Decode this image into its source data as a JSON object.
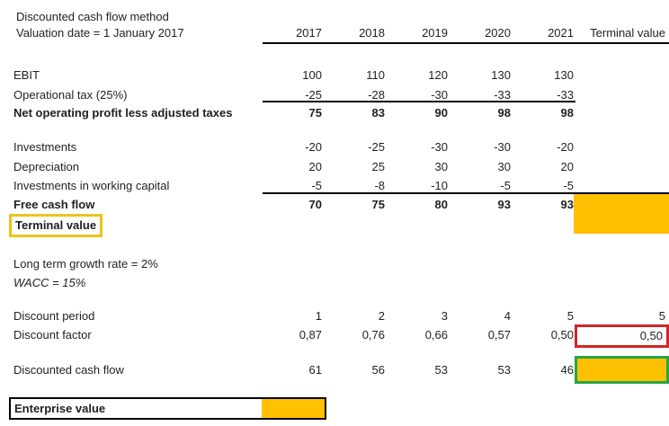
{
  "title": "Discounted cash flow method",
  "header": {
    "label": "Valuation date = 1 January 2017",
    "cols": [
      "2017",
      "2018",
      "2019",
      "2020",
      "2021",
      "Terminal value"
    ]
  },
  "pnl": {
    "ebit": {
      "label": "EBIT",
      "v": [
        "100",
        "110",
        "120",
        "130",
        "130"
      ]
    },
    "optax": {
      "label": "Operational tax (25%)",
      "v": [
        "-25",
        "-28",
        "-30",
        "-33",
        "-33"
      ]
    },
    "noplat": {
      "label": "Net operating profit less adjusted taxes",
      "v": [
        "75",
        "83",
        "90",
        "98",
        "98"
      ]
    },
    "investments": {
      "label": "Investments",
      "v": [
        "-20",
        "-25",
        "-30",
        "-30",
        "-20"
      ]
    },
    "depreciation": {
      "label": "Depreciation",
      "v": [
        "20",
        "25",
        "30",
        "30",
        "20"
      ]
    },
    "wc": {
      "label": "Investments in working capital",
      "v": [
        "-5",
        "-8",
        "-10",
        "-5",
        "-5"
      ]
    },
    "fcf": {
      "label": "Free cash flow",
      "v": [
        "70",
        "75",
        "80",
        "93",
        "93"
      ]
    },
    "terminal": {
      "label": "Terminal value"
    }
  },
  "assumptions": {
    "growth": "Long term growth rate = 2%",
    "wacc": "WACC = 15%"
  },
  "discounting": {
    "period": {
      "label": "Discount period",
      "v": [
        "1",
        "2",
        "3",
        "4",
        "5"
      ],
      "terminal": "5"
    },
    "factor": {
      "label": "Discount factor",
      "v": [
        "0,87",
        "0,76",
        "0,66",
        "0,57",
        "0,50"
      ],
      "terminal": "0,50"
    },
    "dcf": {
      "label": "Discounted cash flow",
      "v": [
        "61",
        "56",
        "53",
        "53",
        "46"
      ]
    }
  },
  "enterprise": {
    "label": "Enterprise value"
  },
  "colors": {
    "highlight_fill": "#FFC000",
    "terminal_label_border": "#EFC319",
    "factor_border": "#D02626",
    "dcf_border": "#28A447"
  }
}
